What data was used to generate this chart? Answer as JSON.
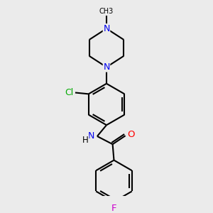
{
  "bg_color": "#ebebeb",
  "bond_color": "#000000",
  "bond_width": 1.5,
  "atom_colors": {
    "N": "#0000ee",
    "O": "#ff0000",
    "Cl": "#00aa00",
    "F": "#cc00cc",
    "C": "#000000",
    "H": "#000000"
  },
  "font_size": 8.5,
  "fig_size": [
    3.0,
    3.0
  ],
  "dpi": 100,
  "methyl_label": "CH3",
  "cl_label": "Cl",
  "nh_label": "H",
  "n_label": "N",
  "o_label": "O",
  "f_label": "F"
}
